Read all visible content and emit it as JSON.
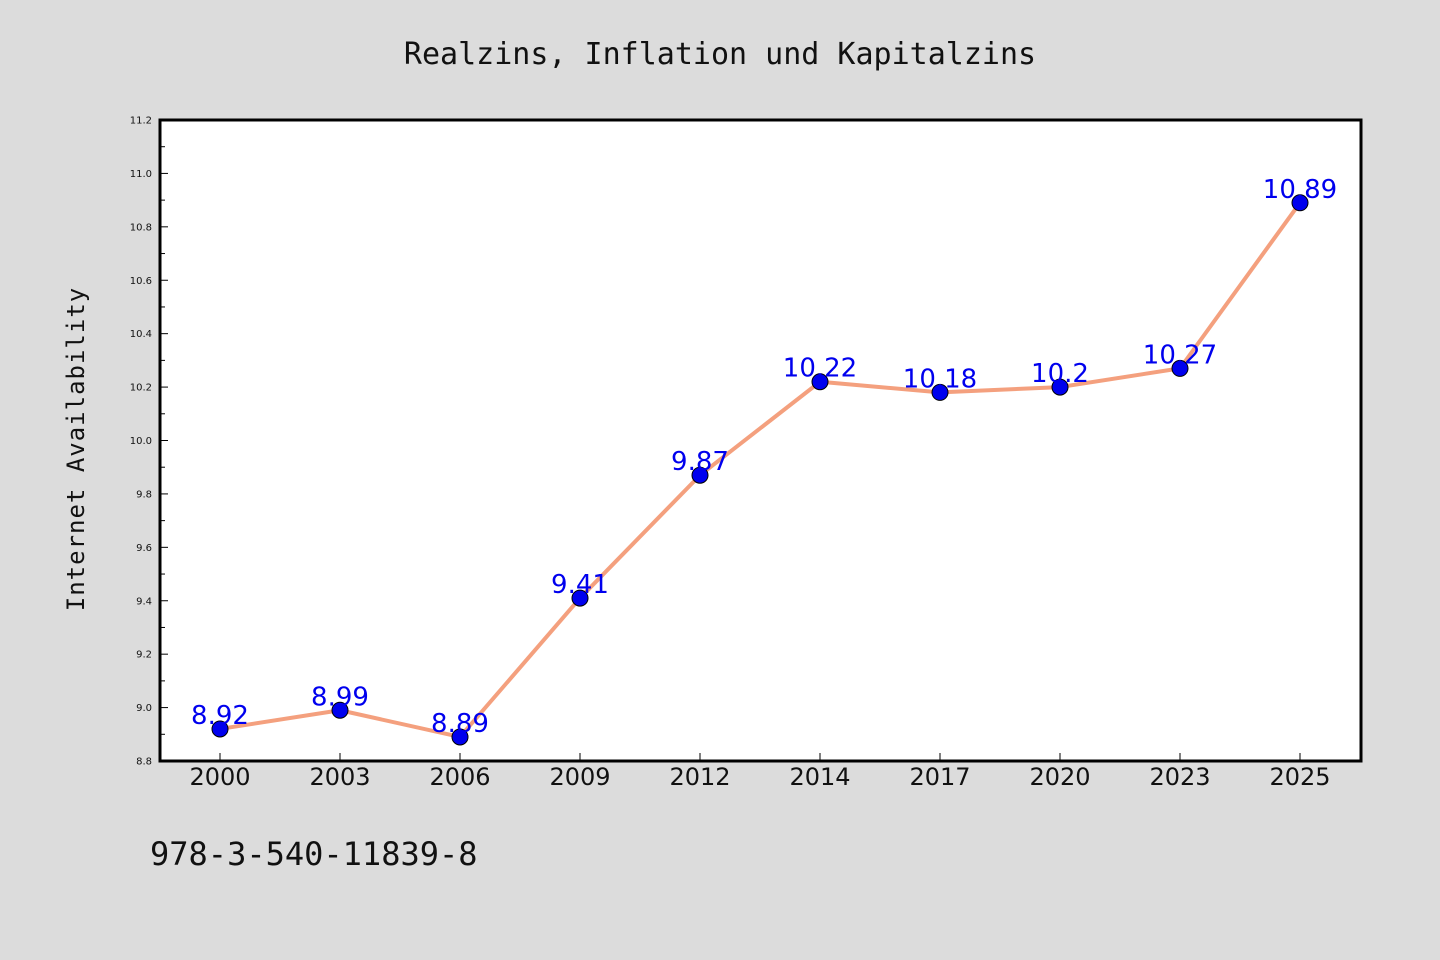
{
  "chart_data": {
    "type": "line",
    "title": "Realzins, Inflation und Kapitalzins",
    "xlabel": "",
    "ylabel": "Internet Availability",
    "categories": [
      "2000",
      "2003",
      "2006",
      "2009",
      "2012",
      "2014",
      "2017",
      "2020",
      "2023",
      "2025"
    ],
    "series": [
      {
        "values": [
          8.92,
          8.99,
          8.89,
          9.41,
          9.87,
          10.22,
          10.18,
          10.2,
          10.27,
          10.89
        ]
      }
    ],
    "data_labels": [
      "8.92",
      "8.99",
      "8.89",
      "9.41",
      "9.87",
      "10.22",
      "10.18",
      "10.2",
      "10.27",
      "10.89"
    ],
    "ylim": [
      8.8,
      11.2
    ],
    "yticks": [
      "8.8",
      "9.0",
      "9.2",
      "9.4",
      "9.6",
      "9.8",
      "10.0",
      "10.2",
      "10.4",
      "10.6",
      "10.8",
      "11.0",
      "11.2"
    ],
    "grid": false,
    "legend": "none",
    "colors": {
      "line": "#f4a07e",
      "marker": "#0000ee",
      "label": "#0000ee",
      "background": "#dcdcdc",
      "plot_background": "#ffffff"
    }
  },
  "footnote": "978-3-540-11839-8"
}
